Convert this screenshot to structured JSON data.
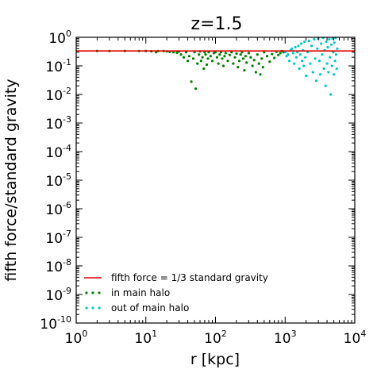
{
  "chart_data": {
    "type": "scatter",
    "title": "z=1.5",
    "xlabel": "r [kpc]",
    "ylabel": "fifth force/standard gravity",
    "x_scale": "log",
    "y_scale": "log",
    "xlim": [
      1,
      10000
    ],
    "ylim": [
      1e-10,
      1
    ],
    "x_ticks": [
      {
        "value": 1,
        "base": "10",
        "exp": "0"
      },
      {
        "value": 10,
        "base": "10",
        "exp": "1"
      },
      {
        "value": 100,
        "base": "10",
        "exp": "2"
      },
      {
        "value": 1000,
        "base": "10",
        "exp": "3"
      },
      {
        "value": 10000,
        "base": "10",
        "exp": "4"
      }
    ],
    "y_ticks": [
      {
        "value": 1,
        "base": "10",
        "exp": "0"
      },
      {
        "value": 0.1,
        "base": "10",
        "exp": "-1"
      },
      {
        "value": 0.01,
        "base": "10",
        "exp": "-2"
      },
      {
        "value": 0.001,
        "base": "10",
        "exp": "-3"
      },
      {
        "value": 0.0001,
        "base": "10",
        "exp": "-4"
      },
      {
        "value": 1e-05,
        "base": "10",
        "exp": "-5"
      },
      {
        "value": 1e-06,
        "base": "10",
        "exp": "-6"
      },
      {
        "value": 1e-07,
        "base": "10",
        "exp": "-7"
      },
      {
        "value": 1e-08,
        "base": "10",
        "exp": "-8"
      },
      {
        "value": 1e-09,
        "base": "10",
        "exp": "-9"
      },
      {
        "value": 1e-10,
        "base": "10",
        "exp": "-10"
      }
    ],
    "grid": false,
    "legend_position": "bottom-left",
    "reference_line": {
      "name": "fifth force = 1/3 standard gravity",
      "y": 0.3333,
      "color": "#e00000"
    },
    "series": [
      {
        "name": "in main halo",
        "color": "#008000",
        "points": [
          [
            2.0,
            0.333
          ],
          [
            3.0,
            0.33
          ],
          [
            5.0,
            0.332
          ],
          [
            8.0,
            0.33
          ],
          [
            10.0,
            0.333
          ],
          [
            12.0,
            0.325
          ],
          [
            14.0,
            0.3
          ],
          [
            15.0,
            0.33
          ],
          [
            18.0,
            0.33
          ],
          [
            20.0,
            0.32
          ],
          [
            22.0,
            0.31
          ],
          [
            25.0,
            0.3
          ],
          [
            28.0,
            0.29
          ],
          [
            30.0,
            0.32
          ],
          [
            32.0,
            0.25
          ],
          [
            35.0,
            0.2
          ],
          [
            38.0,
            0.3
          ],
          [
            40.0,
            0.15
          ],
          [
            42.0,
            0.22
          ],
          [
            45.0,
            0.028
          ],
          [
            48.0,
            0.18
          ],
          [
            50.0,
            0.3
          ],
          [
            52.0,
            0.016
          ],
          [
            55.0,
            0.12
          ],
          [
            58.0,
            0.25
          ],
          [
            60.0,
            0.32
          ],
          [
            62.0,
            0.15
          ],
          [
            65.0,
            0.2
          ],
          [
            68.0,
            0.08
          ],
          [
            70.0,
            0.3
          ],
          [
            72.0,
            0.25
          ],
          [
            75.0,
            0.11
          ],
          [
            78.0,
            0.18
          ],
          [
            80.0,
            0.3
          ],
          [
            85.0,
            0.22
          ],
          [
            90.0,
            0.15
          ],
          [
            95.0,
            0.28
          ],
          [
            100.0,
            0.3
          ],
          [
            105.0,
            0.2
          ],
          [
            110.0,
            0.12
          ],
          [
            115.0,
            0.25
          ],
          [
            120.0,
            0.3
          ],
          [
            125.0,
            0.18
          ],
          [
            130.0,
            0.1
          ],
          [
            135.0,
            0.22
          ],
          [
            140.0,
            0.28
          ],
          [
            150.0,
            0.15
          ],
          [
            160.0,
            0.24
          ],
          [
            170.0,
            0.3
          ],
          [
            180.0,
            0.12
          ],
          [
            190.0,
            0.2
          ],
          [
            200.0,
            0.27
          ],
          [
            210.0,
            0.09
          ],
          [
            220.0,
            0.15
          ],
          [
            230.0,
            0.25
          ],
          [
            240.0,
            0.3
          ],
          [
            250.0,
            0.18
          ],
          [
            260.0,
            0.07
          ],
          [
            270.0,
            0.22
          ],
          [
            280.0,
            0.13
          ],
          [
            300.0,
            0.28
          ],
          [
            320.0,
            0.2
          ],
          [
            340.0,
            0.1
          ],
          [
            360.0,
            0.16
          ],
          [
            380.0,
            0.06
          ],
          [
            400.0,
            0.25
          ],
          [
            420.0,
            0.12
          ],
          [
            440.0,
            0.05
          ],
          [
            460.0,
            0.18
          ],
          [
            480.0,
            0.09
          ],
          [
            500.0,
            0.3
          ],
          [
            550.0,
            0.22
          ],
          [
            600.0,
            0.14
          ],
          [
            650.0,
            0.26
          ],
          [
            700.0,
            0.19
          ],
          [
            750.0,
            0.31
          ],
          [
            800.0,
            0.24
          ],
          [
            850.0,
            0.28
          ],
          [
            900.0,
            0.33
          ],
          [
            950.0,
            0.3
          ]
        ]
      },
      {
        "name": "out of main halo",
        "color": "#00c8c8",
        "points": [
          [
            1000.0,
            0.3
          ],
          [
            1050.0,
            0.22
          ],
          [
            1100.0,
            0.25
          ],
          [
            1150.0,
            0.15
          ],
          [
            1200.0,
            0.35
          ],
          [
            1250.0,
            0.4
          ],
          [
            1300.0,
            0.28
          ],
          [
            1350.0,
            0.12
          ],
          [
            1400.0,
            0.45
          ],
          [
            1450.0,
            0.2
          ],
          [
            1500.0,
            0.3
          ],
          [
            1550.0,
            0.5
          ],
          [
            1600.0,
            0.08
          ],
          [
            1650.0,
            0.25
          ],
          [
            1700.0,
            0.6
          ],
          [
            1750.0,
            0.15
          ],
          [
            1800.0,
            0.35
          ],
          [
            1850.0,
            0.1
          ],
          [
            1900.0,
            0.7
          ],
          [
            1950.0,
            0.2
          ],
          [
            2000.0,
            0.045
          ],
          [
            2100.0,
            0.3
          ],
          [
            2200.0,
            0.75
          ],
          [
            2300.0,
            0.12
          ],
          [
            2400.0,
            0.5
          ],
          [
            2500.0,
            0.06
          ],
          [
            2600.0,
            0.85
          ],
          [
            2700.0,
            0.18
          ],
          [
            2800.0,
            0.03
          ],
          [
            2900.0,
            0.4
          ],
          [
            3000.0,
            0.9
          ],
          [
            3100.0,
            0.15
          ],
          [
            3200.0,
            0.05
          ],
          [
            3300.0,
            0.6
          ],
          [
            3400.0,
            0.25
          ],
          [
            3500.0,
            0.95
          ],
          [
            3600.0,
            0.08
          ],
          [
            3700.0,
            0.35
          ],
          [
            3800.0,
            0.02
          ],
          [
            3900.0,
            0.7
          ],
          [
            4000.0,
            0.12
          ],
          [
            4100.0,
            0.45
          ],
          [
            4200.0,
            0.06
          ],
          [
            4300.0,
            0.85
          ],
          [
            4400.0,
            0.2
          ],
          [
            4500.0,
            0.01
          ],
          [
            4600.0,
            0.55
          ],
          [
            4700.0,
            0.1
          ],
          [
            4800.0,
            0.9
          ],
          [
            4900.0,
            0.3
          ],
          [
            5000.0,
            0.05
          ],
          [
            5100.0,
            0.65
          ],
          [
            5200.0,
            0.15
          ],
          [
            5300.0,
            0.95
          ],
          [
            5400.0,
            0.25
          ],
          [
            5500.0,
            0.08
          ],
          [
            5600.0,
            0.4
          ]
        ]
      }
    ]
  }
}
